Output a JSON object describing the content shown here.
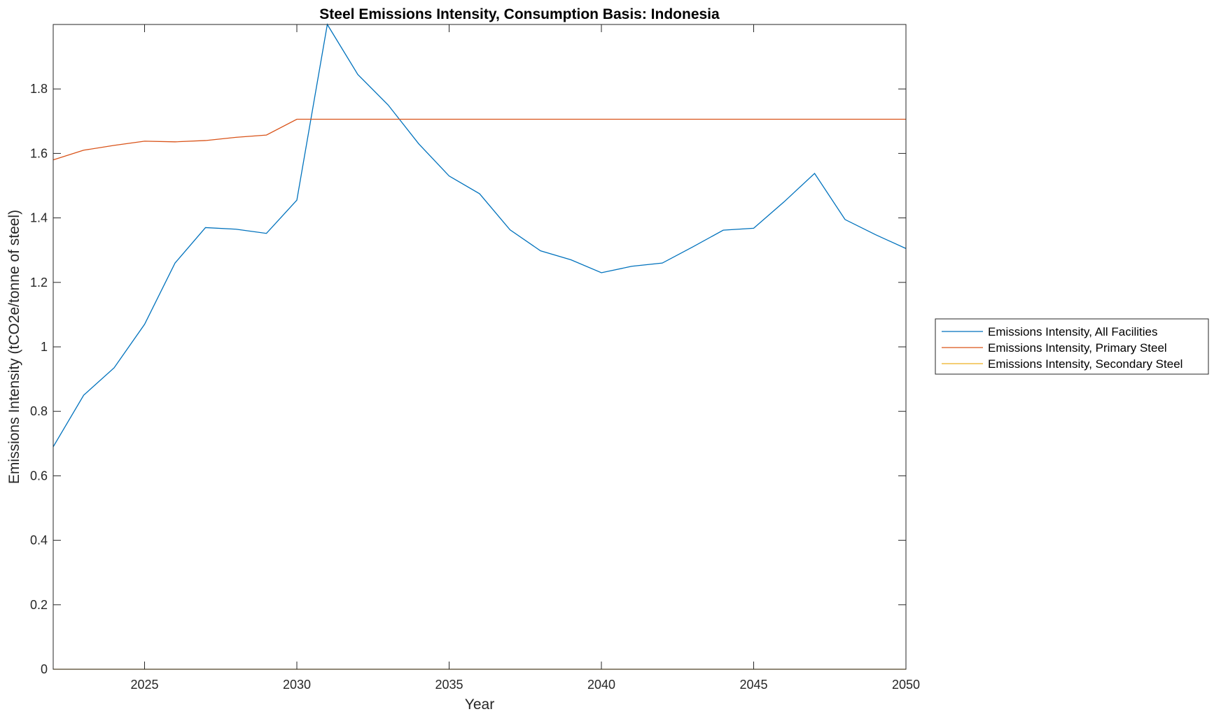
{
  "chart_data": {
    "type": "line",
    "title": "Steel Emissions Intensity, Consumption Basis: Indonesia",
    "xlabel": "Year",
    "ylabel": "Emissions Intensity (tCO2e/tonne of steel)",
    "xlim": [
      2022,
      2050
    ],
    "ylim": [
      0,
      2
    ],
    "x_ticks": [
      2025,
      2030,
      2035,
      2040,
      2045,
      2050
    ],
    "y_ticks": [
      0,
      0.2,
      0.4,
      0.6,
      0.8,
      1,
      1.2,
      1.4,
      1.6,
      1.8
    ],
    "y_tick_labels": [
      "0",
      "0.2",
      "0.4",
      "0.6",
      "0.8",
      "1",
      "1.2",
      "1.4",
      "1.6",
      "1.8"
    ],
    "grid": false,
    "legend_position": "outside-right",
    "x": [
      2022,
      2023,
      2024,
      2025,
      2026,
      2027,
      2028,
      2029,
      2030,
      2031,
      2032,
      2033,
      2034,
      2035,
      2036,
      2037,
      2038,
      2039,
      2040,
      2041,
      2042,
      2043,
      2044,
      2045,
      2046,
      2047,
      2048,
      2049,
      2050
    ],
    "series": [
      {
        "name": "Emissions Intensity, All Facilities",
        "color": "#0072BD",
        "values": [
          0.69,
          0.85,
          0.935,
          1.07,
          1.26,
          1.37,
          1.365,
          1.352,
          1.455,
          2.0,
          1.845,
          1.75,
          1.63,
          1.53,
          1.475,
          1.363,
          1.298,
          1.27,
          1.23,
          1.25,
          1.26,
          1.31,
          1.362,
          1.368,
          1.45,
          1.538,
          1.395,
          1.348,
          1.305
        ]
      },
      {
        "name": "Emissions Intensity, Primary Steel",
        "color": "#D95319",
        "values": [
          1.58,
          1.61,
          1.625,
          1.638,
          1.636,
          1.64,
          1.65,
          1.657,
          1.706,
          1.706,
          1.706,
          1.706,
          1.706,
          1.706,
          1.706,
          1.706,
          1.706,
          1.706,
          1.706,
          1.706,
          1.706,
          1.706,
          1.706,
          1.706,
          1.706,
          1.706,
          1.706,
          1.706,
          1.706
        ]
      },
      {
        "name": "Emissions Intensity, Secondary Steel",
        "color": "#EDB120",
        "values": [
          0,
          0,
          0,
          0,
          0,
          0,
          0,
          0,
          0,
          0,
          0,
          0,
          0,
          0,
          0,
          0,
          0,
          0,
          0,
          0,
          0,
          0,
          0,
          0,
          0,
          0,
          0,
          0,
          0
        ]
      }
    ]
  }
}
